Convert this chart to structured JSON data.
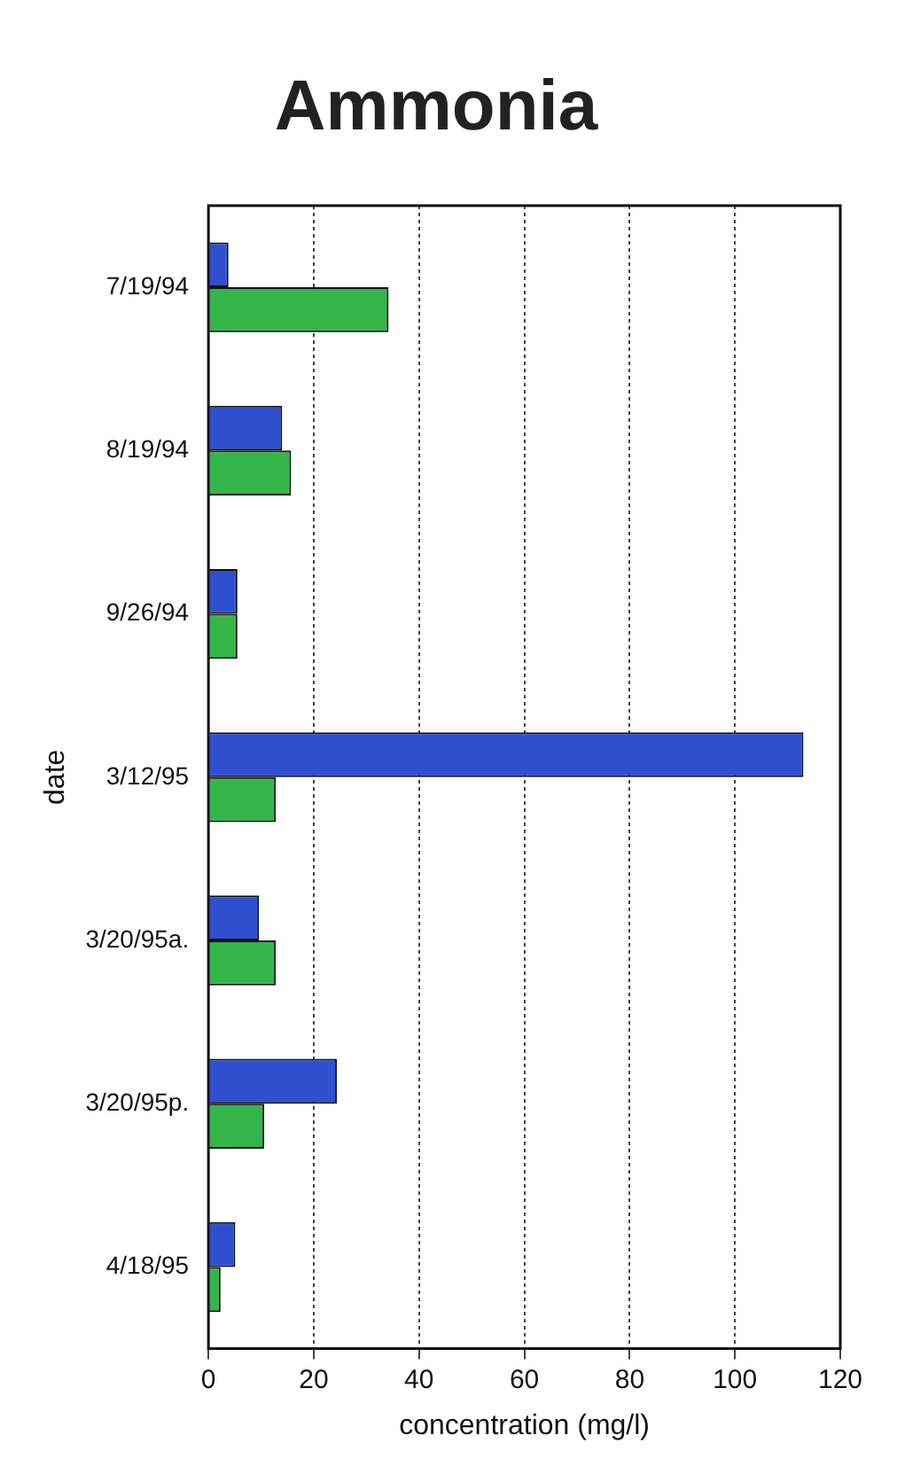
{
  "chart_data": {
    "type": "bar",
    "orientation": "horizontal",
    "title": "Ammonia",
    "xlabel": "concentration (mg/l)",
    "ylabel": "date",
    "categories": [
      "7/19/94",
      "8/19/94",
      "9/26/94",
      "3/12/95",
      "3/20/95a.",
      "3/20/95p.",
      "4/18/95"
    ],
    "series": [
      {
        "color": "#2e4fd0",
        "values": [
          3.8,
          14,
          5.5,
          113,
          9.6,
          24.4,
          5.1
        ]
      },
      {
        "color": "#33b54a",
        "values": [
          34.2,
          15.7,
          5.5,
          12.8,
          12.8,
          10.6,
          2.3
        ]
      }
    ],
    "xlim": [
      0,
      120
    ],
    "xticks": [
      0,
      20,
      40,
      60,
      80,
      100,
      120
    ],
    "grid": "x",
    "legend": false
  }
}
